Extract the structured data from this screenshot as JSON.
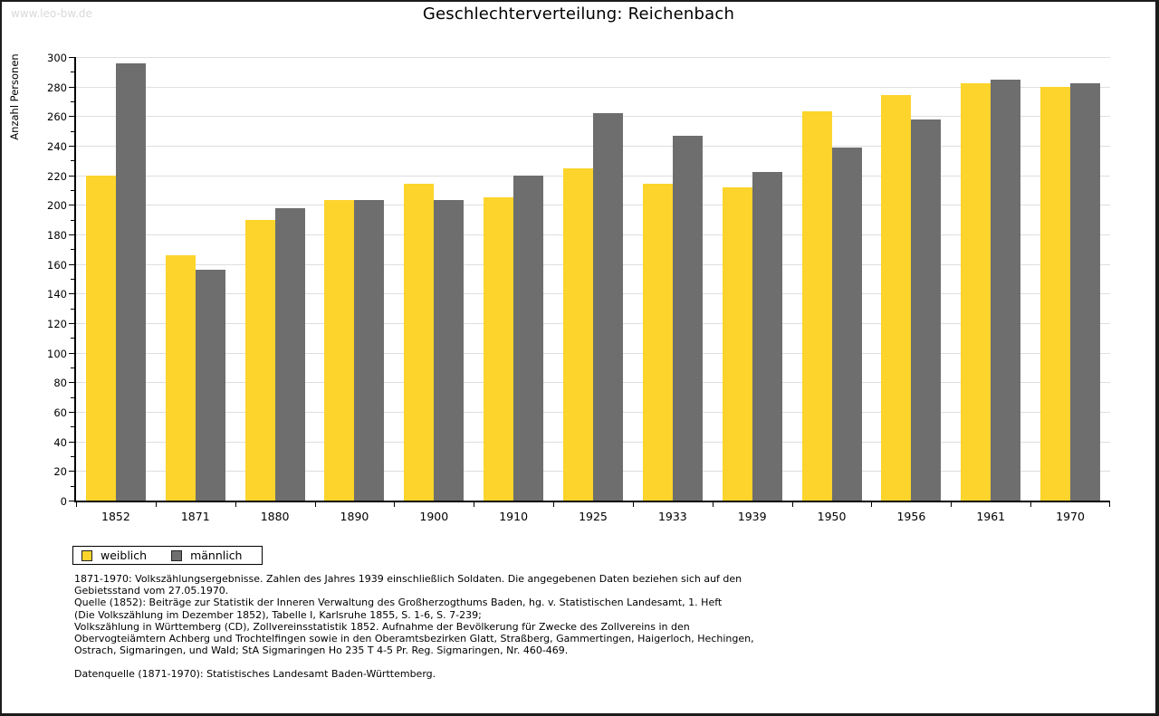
{
  "watermark": "www.leo-bw.de",
  "header": {
    "title": "Geschlechterverteilung: Reichenbach"
  },
  "chart_data": {
    "type": "bar",
    "title": "Geschlechterverteilung: Reichenbach",
    "xlabel": "",
    "ylabel": "Anzahl Personen",
    "ylim": [
      0,
      300
    ],
    "ytick_step": 20,
    "yminor_step": 10,
    "grid": true,
    "legend_position": "bottom-left",
    "categories": [
      "1852",
      "1871",
      "1880",
      "1890",
      "1900",
      "1910",
      "1925",
      "1933",
      "1939",
      "1950",
      "1956",
      "1961",
      "1970"
    ],
    "series": [
      {
        "name": "weiblich",
        "color": "#FCD42C",
        "values": [
          220,
          166,
          190,
          203,
          214,
          205,
          225,
          214,
          212,
          263,
          274,
          282,
          280
        ]
      },
      {
        "name": "männlich",
        "color": "#6E6E6E",
        "values": [
          296,
          156,
          198,
          203,
          203,
          220,
          262,
          247,
          222,
          239,
          258,
          285,
          282
        ]
      }
    ],
    "gridline_color": "#dedede"
  },
  "footnotes": {
    "block1": [
      "1871-1970: Volkszählungsergebnisse. Zahlen des Jahres 1939 einschließlich Soldaten. Die angegebenen Daten beziehen sich auf den",
      "Gebietsstand vom 27.05.1970.",
      "Quelle (1852): Beiträge zur Statistik der Inneren Verwaltung des Großherzogthums Baden, hg. v. Statistischen Landesamt, 1. Heft",
      "(Die Volkszählung im Dezember 1852), Tabelle I, Karlsruhe 1855, S. 1-6, S. 7-239;",
      "Volkszählung in Württemberg (CD), Zollvereinsstatistik 1852. Aufnahme der Bevölkerung für Zwecke des Zollvereins in den",
      "Obervogteiämtern Achberg und Trochtelfingen sowie in den Oberamtsbezirken Glatt, Straßberg, Gammertingen, Haigerloch, Hechingen,",
      "Ostrach, Sigmaringen, und Wald; StA Sigmaringen Ho 235 T 4-5 Pr. Reg. Sigmaringen, Nr. 460-469."
    ],
    "block2": [
      "Datenquelle (1871-1970): Statistisches Landesamt Baden-Württemberg."
    ]
  }
}
